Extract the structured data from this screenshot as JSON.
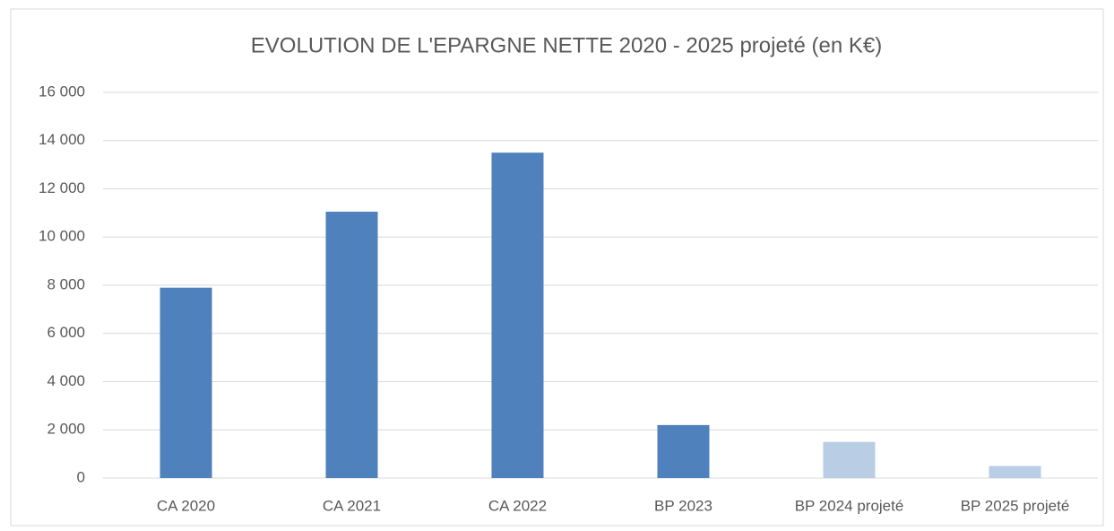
{
  "chart_data": {
    "type": "bar",
    "title": "EVOLUTION DE L'EPARGNE NETTE 2020 - 2025 projeté (en K€)",
    "categories": [
      "CA 2020",
      "CA 2021",
      "CA 2022",
      "BP 2023",
      "BP 2024 projeté",
      "BP 2025 projeté"
    ],
    "values": [
      7900,
      11050,
      13500,
      2200,
      1500,
      500
    ],
    "colors": [
      "#4f81bd",
      "#4f81bd",
      "#4f81bd",
      "#4f81bd",
      "#b9cde5",
      "#b9cde5"
    ],
    "ylim": [
      0,
      16000
    ],
    "yticks": [
      0,
      {
        "value": 2000,
        "label": "2 000"
      },
      {
        "value": 4000,
        "label": "4 000"
      },
      {
        "value": 6000,
        "label": "6 000"
      },
      {
        "value": 8000,
        "label": "8 000"
      },
      {
        "value": 10000,
        "label": "10 000"
      },
      {
        "value": 12000,
        "label": "12 000"
      },
      {
        "value": 14000,
        "label": "14 000"
      },
      {
        "value": 16000,
        "label": "16 000"
      }
    ],
    "grid": true
  }
}
